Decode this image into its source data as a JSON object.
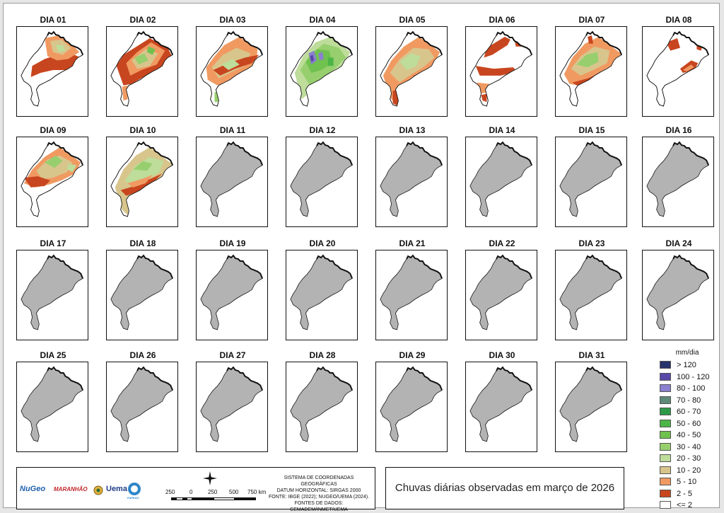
{
  "map_data": {
    "title": "Chuvas diárias observadas em março de 2026",
    "days": [
      "DIA 01",
      "DIA 02",
      "DIA 03",
      "DIA 04",
      "DIA 05",
      "DIA 06",
      "DIA 07",
      "DIA 08",
      "DIA 09",
      "DIA 10",
      "DIA 11",
      "DIA 12",
      "DIA 13",
      "DIA 14",
      "DIA 15",
      "DIA 16",
      "DIA 17",
      "DIA 18",
      "DIA 19",
      "DIA 20",
      "DIA 21",
      "DIA 22",
      "DIA 23",
      "DIA 24",
      "DIA 25",
      "DIA 26",
      "DIA 27",
      "DIA 28",
      "DIA 29",
      "DIA 30",
      "DIA 31"
    ],
    "days_with_data": 10,
    "no_data_color": "#b3b3b3",
    "legend": {
      "unit": "mm/dia",
      "classes": [
        {
          "label": "> 120",
          "color": "#27336b"
        },
        {
          "label": "100 - 120",
          "color": "#5a48a8"
        },
        {
          "label": "80 - 100",
          "color": "#8a7fd0"
        },
        {
          "label": "70 - 80",
          "color": "#5e8a78"
        },
        {
          "label": "60 - 70",
          "color": "#2e9a48"
        },
        {
          "label": "50 - 60",
          "color": "#4cb548"
        },
        {
          "label": "40 - 50",
          "color": "#70c14e"
        },
        {
          "label": "30 - 40",
          "color": "#97cf6e"
        },
        {
          "label": "20 - 30",
          "color": "#bedc9a"
        },
        {
          "label": "10 - 20",
          "color": "#d8c58c"
        },
        {
          "label": "5 - 10",
          "color": "#f09a62"
        },
        {
          "label": "2 - 5",
          "color": "#c8461f"
        },
        {
          "label": "<= 2",
          "color": "#ffffff"
        }
      ]
    }
  },
  "footer": {
    "logos": [
      "NuGeo",
      "MARANHÃO",
      "Uema",
      "FAPEAG"
    ],
    "scale": {
      "ticks": [
        "250",
        "0",
        "250",
        "500",
        "750 km"
      ]
    },
    "metadata": [
      "SISTEMA DE COORDENADAS GEOGRÁFICAS",
      "DATUM HORIZONTAL: SIRGAS 2000",
      "FONTE: IBGE (2022); NUGEO/UEMA (2024).",
      "FONTES DE DADOS: CEMADEM/INMET/UEMA"
    ]
  }
}
